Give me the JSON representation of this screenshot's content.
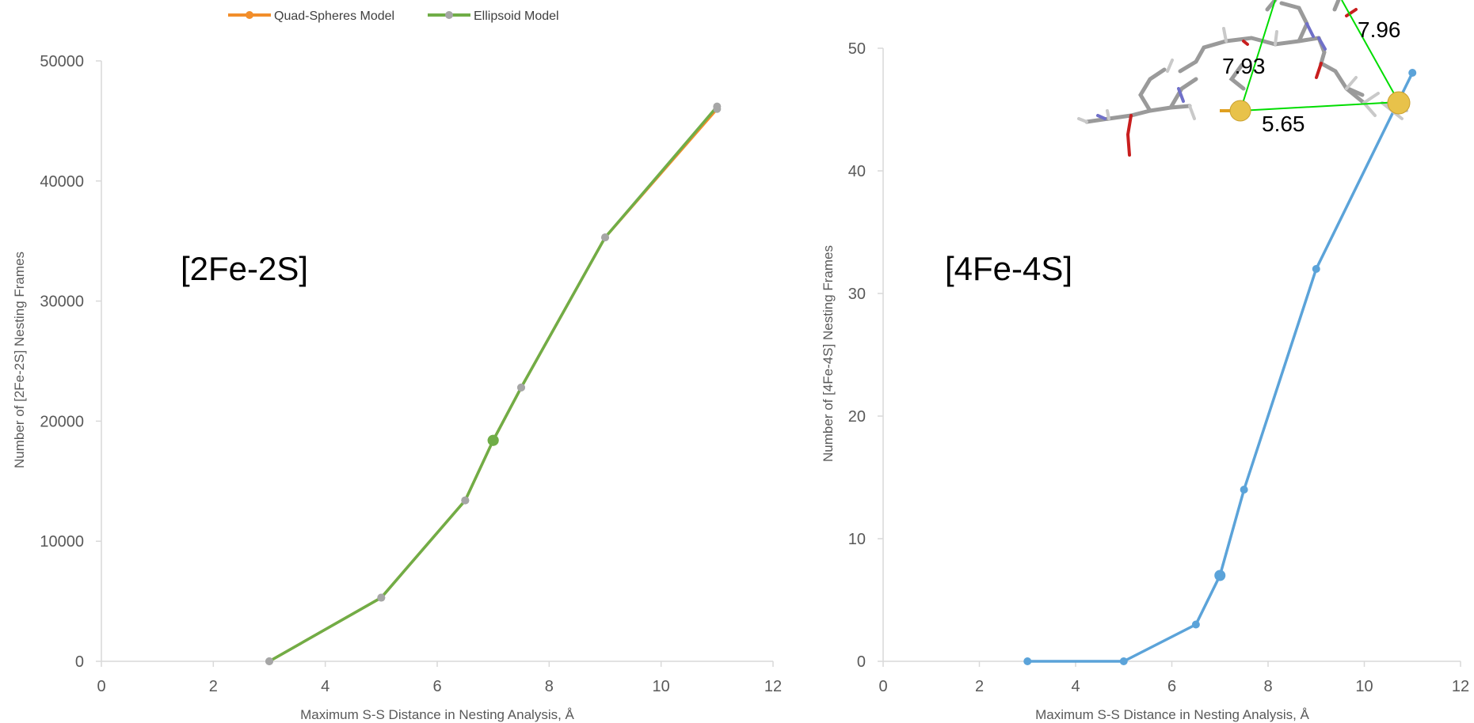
{
  "chart_data": [
    {
      "type": "line",
      "panel_label": "[2Fe-2S]",
      "xlabel": "Maximum S-S Distance in Nesting Analysis, Å",
      "ylabel": "Number of [2Fe-2S] Nesting Frames",
      "xlim": [
        0,
        12
      ],
      "ylim": [
        0,
        50000
      ],
      "xticks": [
        0,
        2,
        4,
        6,
        8,
        10,
        12
      ],
      "yticks": [
        0,
        10000,
        20000,
        30000,
        40000,
        50000
      ],
      "legend": {
        "placement": "top"
      },
      "series": [
        {
          "name": "Quad-Spheres Model",
          "color": "#f28e2b",
          "x": [
            3,
            5,
            6.5,
            7,
            7.5,
            9,
            11
          ],
          "y": [
            0,
            5300,
            13400,
            18400,
            22800,
            35300,
            46000
          ]
        },
        {
          "name": "Ellipsoid Model",
          "color": "#70ad47",
          "x": [
            3,
            5,
            6.5,
            7,
            7.5,
            9,
            11
          ],
          "y": [
            0,
            5300,
            13400,
            18400,
            22800,
            35300,
            46200
          ]
        }
      ],
      "highlight": {
        "x": 7,
        "y": 18400
      }
    },
    {
      "type": "line",
      "panel_label": "[4Fe-4S]",
      "xlabel": "Maximum S-S Distance in Nesting Analysis, Å",
      "ylabel": "Number of [4Fe-4S] Nesting Frames",
      "xlim": [
        0,
        12
      ],
      "ylim": [
        0,
        50
      ],
      "xticks": [
        0,
        2,
        4,
        6,
        8,
        10,
        12
      ],
      "yticks": [
        0,
        10,
        20,
        30,
        40,
        50
      ],
      "series": [
        {
          "color": "#5ba3d9",
          "x": [
            3,
            5,
            6.5,
            7,
            7.5,
            9,
            11
          ],
          "y": [
            0,
            0,
            3,
            7,
            14,
            32,
            48
          ]
        }
      ],
      "highlight": {
        "x": 7,
        "y": 7
      }
    }
  ],
  "inset": {
    "distance_labels": [
      "7.93",
      "7.96",
      "5.65"
    ]
  }
}
